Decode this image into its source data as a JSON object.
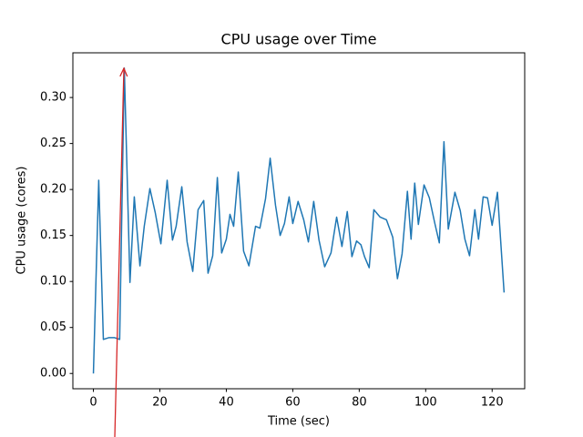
{
  "chart_data": {
    "type": "line",
    "title": "CPU usage over Time",
    "x_label": "Time (sec)",
    "y_label": "CPU usage (cores)",
    "grid": false,
    "xlim": [
      -6.18,
      129.8
    ],
    "ylim": [
      -0.0166,
      0.3486
    ],
    "xticks": [
      0,
      20,
      40,
      60,
      80,
      100,
      120
    ],
    "yticks": [
      {
        "value": 0,
        "label": "0.00"
      },
      {
        "value": 0.05,
        "label": "0.05"
      },
      {
        "value": 0.1,
        "label": "0.10"
      },
      {
        "value": 0.15,
        "label": "0.15"
      },
      {
        "value": 0.2,
        "label": "0.20"
      },
      {
        "value": 0.25,
        "label": "0.25"
      },
      {
        "value": 0.3,
        "label": "0.30"
      }
    ],
    "series": [
      {
        "name": "CPU usage",
        "color": "#1f77b4",
        "x": [
          0,
          1.6,
          3.0,
          4.7,
          6.3,
          7.9,
          9.3,
          11.0,
          12.3,
          14.0,
          15.3,
          17.0,
          18.6,
          20.3,
          22.2,
          23.8,
          24.9,
          26.6,
          28.2,
          29.9,
          31.5,
          33.2,
          34.5,
          35.9,
          37.3,
          38.6,
          40.0,
          41.1,
          42.2,
          43.6,
          45.2,
          46.8,
          48.8,
          50.1,
          51.8,
          53.2,
          54.8,
          56.2,
          57.5,
          58.9,
          60.0,
          61.6,
          63.3,
          64.7,
          66.3,
          67.9,
          69.6,
          71.5,
          73.2,
          74.8,
          76.4,
          77.8,
          79.2,
          80.5,
          81.6,
          83.0,
          84.4,
          86.3,
          88.2,
          90.1,
          91.5,
          92.9,
          94.5,
          95.6,
          96.7,
          97.8,
          99.5,
          101.1,
          102.7,
          104.1,
          105.5,
          106.8,
          108.8,
          110.4,
          111.8,
          113.2,
          114.8,
          115.9,
          117.3,
          118.6,
          120.0,
          121.6,
          123.6
        ],
        "values": [
          0,
          0.21,
          0.037,
          0.039,
          0.039,
          0.037,
          0.332,
          0.099,
          0.192,
          0.117,
          0.16,
          0.201,
          0.175,
          0.141,
          0.21,
          0.145,
          0.16,
          0.203,
          0.143,
          0.111,
          0.178,
          0.188,
          0.109,
          0.128,
          0.213,
          0.131,
          0.146,
          0.173,
          0.16,
          0.219,
          0.133,
          0.117,
          0.16,
          0.158,
          0.19,
          0.234,
          0.183,
          0.15,
          0.163,
          0.192,
          0.163,
          0.187,
          0.167,
          0.143,
          0.187,
          0.145,
          0.116,
          0.131,
          0.17,
          0.138,
          0.176,
          0.127,
          0.144,
          0.14,
          0.127,
          0.115,
          0.178,
          0.17,
          0.167,
          0.148,
          0.103,
          0.13,
          0.198,
          0.146,
          0.207,
          0.162,
          0.205,
          0.191,
          0.164,
          0.142,
          0.252,
          0.157,
          0.197,
          0.177,
          0.146,
          0.128,
          0.178,
          0.146,
          0.192,
          0.191,
          0.161,
          0.197,
          0.088
        ]
      }
    ]
  }
}
